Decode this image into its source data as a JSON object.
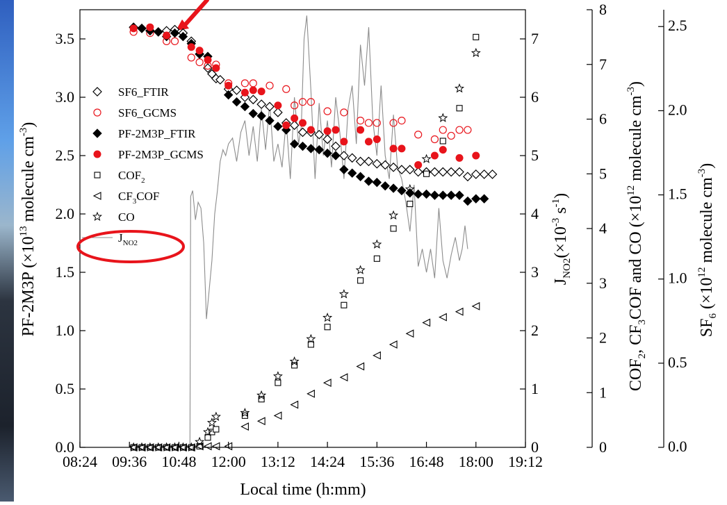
{
  "chart_data": {
    "type": "scatter",
    "xlabel": "Local time (h:mm)",
    "x_ticks": [
      "08:24",
      "09:36",
      "10:48",
      "12:00",
      "13:12",
      "14:24",
      "15:36",
      "16:48",
      "18:00",
      "19:12"
    ],
    "xlim": [
      "08:24",
      "19:12"
    ],
    "axes": {
      "left": {
        "label": "PF-2M3P (×10¹³ molecule cm⁻³)",
        "label_main": "PF-2M3P (×10",
        "label_exp": "13",
        "label_rest": " molecule cm",
        "label_exp2": "-3",
        "label_end": ")",
        "ylim": [
          0,
          3.75
        ],
        "ticks": [
          "0.0",
          "0.5",
          "1.0",
          "1.5",
          "2.0",
          "2.5",
          "3.0",
          "3.5"
        ]
      },
      "right1": {
        "label": "J_NO2 (×10⁻³ s⁻¹)",
        "ylim": [
          0,
          7.5
        ],
        "ticks": [
          "0",
          "1",
          "2",
          "3",
          "4",
          "5",
          "6",
          "7"
        ]
      },
      "right2": {
        "label": "COF₂, CF₃COF and CO (×10¹² molecule cm⁻³)",
        "ylim": [
          0,
          8
        ],
        "ticks": [
          "0",
          "1",
          "2",
          "3",
          "4",
          "5",
          "6",
          "7",
          "8"
        ]
      },
      "right3": {
        "label": "SF₆ (×10¹² molecule cm⁻³)",
        "ylim": [
          0,
          2.6
        ],
        "ticks": [
          "0.0",
          "0.5",
          "1.0",
          "1.5",
          "2.0",
          "2.5"
        ]
      }
    },
    "legend_position": "left",
    "annotations": [
      "red arrow at 10:50",
      "red ellipse around J_NO2 legend entry"
    ],
    "series": [
      {
        "name": "SF6_FTIR",
        "marker": "open-diamond",
        "color": "#000000",
        "x": [
          "09:42",
          "09:54",
          "10:06",
          "10:18",
          "10:30",
          "10:42",
          "10:54",
          "11:06",
          "11:18",
          "11:30",
          "11:36",
          "11:42",
          "11:48",
          "12:00",
          "12:12",
          "12:24",
          "12:36",
          "12:48",
          "13:00",
          "13:12",
          "13:24",
          "13:36",
          "13:48",
          "14:00",
          "14:12",
          "14:24",
          "14:36",
          "14:48",
          "15:00",
          "15:12",
          "15:24",
          "15:36",
          "15:48",
          "16:00",
          "16:12",
          "16:24",
          "16:36",
          "16:48",
          "17:00",
          "17:12",
          "17:24",
          "17:36",
          "17:48",
          "18:00",
          "18:12",
          "18:24"
        ],
        "y": [
          3.6,
          3.59,
          3.57,
          3.56,
          3.57,
          3.58,
          3.55,
          3.48,
          3.37,
          3.25,
          3.2,
          3.16,
          3.15,
          3.07,
          3.06,
          3.0,
          2.98,
          2.94,
          2.92,
          2.87,
          2.78,
          2.76,
          2.7,
          2.7,
          2.68,
          2.64,
          2.58,
          2.5,
          2.48,
          2.45,
          2.45,
          2.43,
          2.42,
          2.4,
          2.38,
          2.38,
          2.36,
          2.36,
          2.36,
          2.36,
          2.36,
          2.36,
          2.32,
          2.34,
          2.34,
          2.34
        ]
      },
      {
        "name": "SF6_GCMS",
        "marker": "open-circle",
        "color": "#e8141b",
        "x": [
          "09:42",
          "10:06",
          "10:30",
          "10:42",
          "11:06",
          "11:18",
          "11:30",
          "11:42",
          "12:00",
          "12:24",
          "12:36",
          "13:00",
          "13:24",
          "13:36",
          "13:48",
          "14:00",
          "14:24",
          "14:48",
          "15:12",
          "15:24",
          "15:36",
          "16:00",
          "16:12",
          "16:36",
          "17:00",
          "17:12",
          "17:24",
          "17:36",
          "17:48"
        ],
        "y": [
          3.56,
          3.55,
          3.48,
          3.48,
          3.34,
          3.3,
          3.27,
          3.28,
          3.12,
          3.12,
          3.12,
          3.1,
          3.07,
          2.93,
          2.96,
          2.96,
          2.88,
          2.87,
          2.8,
          2.78,
          2.78,
          2.78,
          2.8,
          2.68,
          2.64,
          2.72,
          2.67,
          2.72,
          2.72
        ]
      },
      {
        "name": "PF-2M3P_FTIR",
        "marker": "filled-diamond",
        "color": "#000000",
        "x": [
          "09:42",
          "09:54",
          "10:06",
          "10:18",
          "10:30",
          "10:42",
          "10:54",
          "11:06",
          "11:18",
          "11:30",
          "12:00",
          "12:12",
          "12:24",
          "12:36",
          "12:48",
          "13:00",
          "13:12",
          "13:24",
          "13:36",
          "13:48",
          "14:00",
          "14:12",
          "14:24",
          "14:36",
          "14:48",
          "15:00",
          "15:12",
          "15:24",
          "15:36",
          "15:48",
          "16:00",
          "16:12",
          "16:24",
          "16:36",
          "16:48",
          "17:00",
          "17:12",
          "17:24",
          "17:36",
          "17:48",
          "18:00",
          "18:12"
        ],
        "y": [
          3.6,
          3.59,
          3.57,
          3.56,
          3.52,
          3.55,
          3.52,
          3.46,
          3.37,
          3.35,
          3.02,
          2.96,
          2.92,
          2.86,
          2.84,
          2.8,
          2.75,
          2.72,
          2.6,
          2.58,
          2.56,
          2.55,
          2.52,
          2.5,
          2.38,
          2.35,
          2.32,
          2.28,
          2.27,
          2.24,
          2.22,
          2.2,
          2.18,
          2.17,
          2.17,
          2.16,
          2.16,
          2.16,
          2.16,
          2.11,
          2.13,
          2.13
        ]
      },
      {
        "name": "PF-2M3P_GCMS",
        "marker": "filled-circle",
        "color": "#e8141b",
        "x": [
          "09:42",
          "10:06",
          "10:30",
          "11:06",
          "11:18",
          "11:30",
          "11:42",
          "12:00",
          "12:24",
          "12:36",
          "12:48",
          "13:12",
          "13:24",
          "13:36",
          "13:48",
          "14:00",
          "14:24",
          "14:36",
          "14:48",
          "15:12",
          "15:24",
          "15:36",
          "16:00",
          "16:12",
          "16:36",
          "17:00",
          "17:12",
          "17:36",
          "18:00"
        ],
        "y": [
          3.59,
          3.6,
          3.53,
          3.43,
          3.4,
          3.32,
          3.25,
          3.1,
          3.04,
          3.06,
          3.05,
          2.93,
          2.76,
          2.82,
          2.78,
          2.72,
          2.71,
          2.72,
          2.62,
          2.72,
          2.62,
          2.64,
          2.56,
          2.56,
          2.42,
          2.5,
          2.55,
          2.48,
          2.5
        ]
      },
      {
        "name": "COF₂",
        "label_main": "COF",
        "label_sub": "2",
        "axis": "right2",
        "marker": "open-square",
        "color": "#000000",
        "x": [
          "09:42",
          "09:54",
          "10:06",
          "10:18",
          "10:30",
          "10:42",
          "10:54",
          "11:06",
          "11:18",
          "11:30",
          "11:36",
          "11:42",
          "12:24",
          "12:48",
          "13:12",
          "13:36",
          "14:00",
          "14:24",
          "14:48",
          "15:12",
          "15:36",
          "16:00",
          "16:24",
          "16:48",
          "17:12",
          "17:36",
          "18:00"
        ],
        "y": [
          0.0,
          0.0,
          0.0,
          0.0,
          0.0,
          0.0,
          0.0,
          0.0,
          0.02,
          0.18,
          0.28,
          0.33,
          0.58,
          0.88,
          1.18,
          1.5,
          1.88,
          2.2,
          2.6,
          3.05,
          3.45,
          4.0,
          4.45,
          5.0,
          5.6,
          6.2,
          7.5
        ]
      },
      {
        "name": "CF₃COF",
        "label_main": "CF",
        "label_sub": "3",
        "label_rest": "COF",
        "axis": "right2",
        "marker": "open-left-triangle",
        "color": "#000000",
        "x": [
          "09:42",
          "09:54",
          "10:06",
          "10:18",
          "10:30",
          "10:42",
          "10:54",
          "11:06",
          "11:18",
          "11:30",
          "11:42",
          "12:00",
          "12:24",
          "12:48",
          "13:12",
          "13:36",
          "14:00",
          "14:24",
          "14:48",
          "15:12",
          "15:36",
          "16:00",
          "16:24",
          "16:48",
          "17:12",
          "17:36",
          "18:00"
        ],
        "y": [
          0.0,
          0.0,
          0.0,
          0.0,
          0.0,
          0.0,
          0.0,
          0.0,
          0.02,
          0.02,
          0.02,
          0.02,
          0.38,
          0.48,
          0.58,
          0.78,
          0.98,
          1.18,
          1.28,
          1.48,
          1.68,
          1.88,
          2.08,
          2.28,
          2.38,
          2.48,
          2.58
        ]
      },
      {
        "name": "CO",
        "axis": "right2",
        "marker": "open-star",
        "color": "#000000",
        "x": [
          "09:42",
          "09:54",
          "10:06",
          "10:18",
          "10:30",
          "10:42",
          "10:54",
          "11:06",
          "11:18",
          "11:30",
          "11:36",
          "11:42",
          "12:24",
          "12:48",
          "13:12",
          "13:36",
          "14:00",
          "14:24",
          "14:48",
          "15:12",
          "15:36",
          "16:00",
          "16:24",
          "16:48",
          "17:12",
          "17:36",
          "18:00"
        ],
        "y": [
          0.0,
          0.0,
          0.0,
          0.0,
          0.0,
          0.0,
          0.0,
          0.0,
          0.1,
          0.28,
          0.45,
          0.56,
          0.63,
          0.95,
          1.3,
          1.57,
          1.98,
          2.37,
          2.8,
          3.24,
          3.71,
          4.24,
          4.72,
          5.27,
          6.02,
          6.56,
          7.21
        ]
      },
      {
        "name": "J_NO2",
        "label_main": "J",
        "label_sub": "NO2",
        "axis": "right1",
        "marker": "line",
        "color": "#8c8c8c",
        "x": [
          "10:42",
          "10:48",
          "10:54",
          "11:00",
          "11:04",
          "11:05",
          "11:08",
          "11:12",
          "11:16",
          "11:20",
          "11:24",
          "11:28",
          "11:32",
          "11:36",
          "11:40",
          "11:44",
          "11:48",
          "11:52",
          "11:56",
          "12:00",
          "12:06",
          "12:12",
          "12:18",
          "12:24",
          "12:30",
          "12:36",
          "12:42",
          "12:48",
          "12:54",
          "13:00",
          "13:06",
          "13:12",
          "13:18",
          "13:24",
          "13:30",
          "13:36",
          "13:42",
          "13:46",
          "13:50",
          "13:54",
          "14:00",
          "14:06",
          "14:12",
          "14:18",
          "14:24",
          "14:30",
          "14:36",
          "14:42",
          "14:48",
          "14:54",
          "15:00",
          "15:06",
          "15:12",
          "15:18",
          "15:24",
          "15:30",
          "15:36",
          "15:42",
          "15:48",
          "15:54",
          "16:00",
          "16:06",
          "16:12",
          "16:18",
          "16:24",
          "16:30",
          "16:36",
          "16:42",
          "16:48",
          "16:54",
          "17:00",
          "17:06",
          "17:12",
          "17:18",
          "17:24",
          "17:30",
          "17:36",
          "17:40",
          "17:44",
          "17:48"
        ],
        "y": [
          0.0,
          0.0,
          0.0,
          0.0,
          0.0,
          4.3,
          4.4,
          3.9,
          4.2,
          4.1,
          3.5,
          2.2,
          2.7,
          3.2,
          4.0,
          4.4,
          4.9,
          5.1,
          5.0,
          5.2,
          5.3,
          4.9,
          5.4,
          5.6,
          5.0,
          5.5,
          4.9,
          5.8,
          5.1,
          5.9,
          4.9,
          5.2,
          4.8,
          5.6,
          4.6,
          6.0,
          5.2,
          5.5,
          7.0,
          7.4,
          6.1,
          4.6,
          5.9,
          5.0,
          5.6,
          4.8,
          6.0,
          5.4,
          4.6,
          5.8,
          6.2,
          5.2,
          6.9,
          6.2,
          7.2,
          5.6,
          5.0,
          6.2,
          5.0,
          4.6,
          5.7,
          4.8,
          4.6,
          4.2,
          3.7,
          4.5,
          3.1,
          3.4,
          3.0,
          3.4,
          2.9,
          4.1,
          3.2,
          2.9,
          3.3,
          3.6,
          3.2,
          3.4,
          3.8,
          3.4
        ]
      }
    ]
  }
}
